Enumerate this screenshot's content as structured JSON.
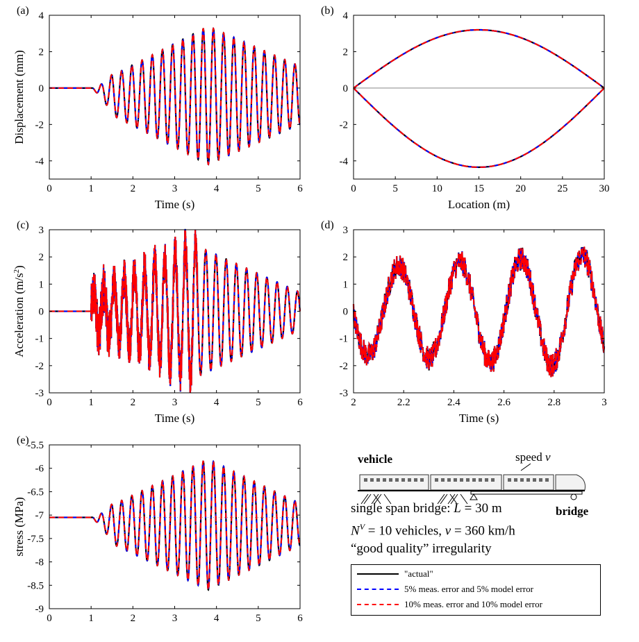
{
  "chart_data": [
    {
      "panel": "(a)",
      "type": "line",
      "xlabel": "Time (s)",
      "ylabel": "Displacement (mm)",
      "xlim": [
        0,
        6
      ],
      "ylim": [
        -5,
        4
      ],
      "xticks": [
        "0",
        "1",
        "2",
        "3",
        "4",
        "5",
        "6"
      ],
      "yticks": [
        "4",
        "2",
        "0",
        "-2",
        "-4"
      ],
      "signal": {
        "start": 1.0,
        "freq": 4.1,
        "mean": -0.4,
        "peak_time": 3.8,
        "peak_amp": 3.8,
        "end_amp": 1.6,
        "init_amp": 0.5
      },
      "extremes": {
        "max": 3.2,
        "min": -4.4
      },
      "series": [
        {
          "name": "\"actual\"",
          "color": "#000000",
          "style": "solid"
        },
        {
          "name": "5% meas. error and 5% model error",
          "color": "#0000ff",
          "style": "dashdot"
        },
        {
          "name": "10% meas. error and 10% model error",
          "color": "#ff0000",
          "style": "dashed"
        }
      ]
    },
    {
      "panel": "(b)",
      "type": "line",
      "xlabel": "Location (m)",
      "ylabel": "",
      "xlim": [
        0,
        30
      ],
      "ylim": [
        -5,
        4
      ],
      "xticks": [
        "0",
        "5",
        "10",
        "15",
        "20",
        "25",
        "30"
      ],
      "yticks": [
        "4",
        "2",
        "0",
        "-2",
        "-4"
      ],
      "envelope": {
        "upper_peak": 3.2,
        "lower_peak": -4.35,
        "peak_location": 15
      }
    },
    {
      "panel": "(c)",
      "type": "line",
      "xlabel": "Time (s)",
      "ylabel": "Acceleration (m/s^2)",
      "xlim": [
        0,
        6
      ],
      "ylim": [
        -3,
        3
      ],
      "xticks": [
        "0",
        "1",
        "2",
        "3",
        "4",
        "5",
        "6"
      ],
      "yticks": [
        "3",
        "2",
        "1",
        "0",
        "-1",
        "-2",
        "-3"
      ],
      "signal": {
        "start": 1.0,
        "freq": 4.1,
        "peak_time": 3.4,
        "peak_amp": 2.5,
        "end_amp": 0.7,
        "noise_end": 3.55
      },
      "extremes": {
        "max": 2.5,
        "min": -2.9
      }
    },
    {
      "panel": "(d)",
      "type": "line",
      "xlabel": "Time (s)",
      "ylabel": "",
      "xlim": [
        2,
        3
      ],
      "ylim": [
        -3,
        3
      ],
      "xticks": [
        "2",
        "2.2",
        "2.4",
        "2.6",
        "2.8",
        "3"
      ],
      "yticks": [
        "3",
        "2",
        "1",
        "0",
        "-1",
        "-2",
        "-3"
      ],
      "signal": {
        "freq": 4.1,
        "amp_start": 1.6,
        "amp_end": 2.1,
        "phase_peak_time": 2.18
      }
    },
    {
      "panel": "(e)",
      "type": "line",
      "xlabel": "",
      "ylabel": "stress (MPa)",
      "xlim": [
        0,
        6
      ],
      "ylim": [
        -9,
        -5.5
      ],
      "xticks": [
        "0",
        "1",
        "2",
        "3",
        "4",
        "5",
        "6"
      ],
      "yticks": [
        "-5.5",
        "-6",
        "-6.5",
        "-7",
        "-7.5",
        "-8",
        "-8.5",
        "-9"
      ],
      "signal": {
        "start": 1.0,
        "freq": 4.1,
        "baseline": -7.05,
        "mean": -7.2,
        "peak_time": 3.8,
        "peak_amp": 1.4,
        "end_amp": 0.45,
        "init_amp": 0.2
      },
      "reference_line": -7.05
    }
  ],
  "schematic": {
    "vehicle_label": "vehicle",
    "speed_label": "speed",
    "speed_symbol": "v",
    "bridge_label": "bridge",
    "line1": "single span bridge: L = 30 m",
    "line2": "N^V = 10 vehicles, v = 360 km/h",
    "line3": "“good quality” irregularity"
  },
  "legend": {
    "entries": [
      "\"actual\"",
      "5% meas. error and 5% model error",
      "10% meas. error and 10% model error"
    ],
    "colors": [
      "#000000",
      "#0000ff",
      "#ff0000"
    ]
  }
}
